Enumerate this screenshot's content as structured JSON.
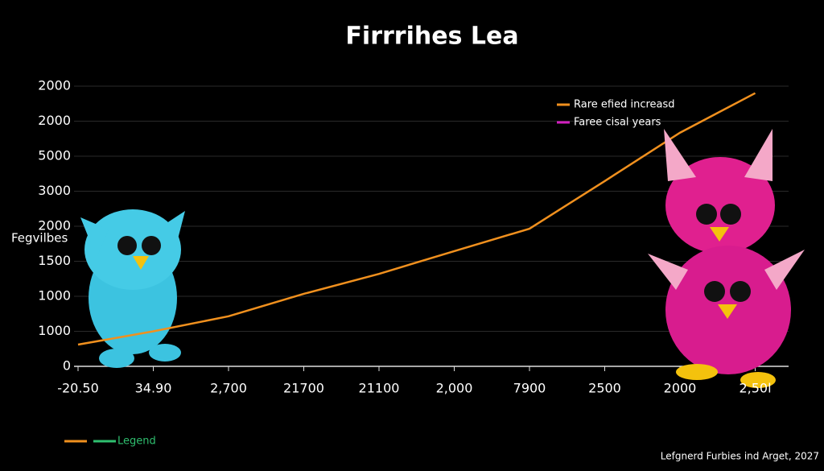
{
  "chart_data": {
    "type": "line",
    "title": "Firrrihes Lea",
    "y_label": "Fegvilbes",
    "categories": [
      "-20.50",
      "34.90",
      "2,700",
      "21700",
      "21100",
      "2,000",
      "7900",
      "2500",
      "2000",
      "2,50l"
    ],
    "series": [
      {
        "name": "Rare efied increasd",
        "color": "#f0901e",
        "values": [
          0.62,
          1.0,
          1.43,
          2.07,
          2.64,
          3.29,
          3.93,
          5.29,
          6.67,
          7.8
        ]
      },
      {
        "name": "Faree cisal years",
        "color": "#d21fbf",
        "values": [
          null,
          null,
          null,
          null,
          null,
          null,
          null,
          null,
          null,
          null
        ]
      }
    ],
    "ylim": [
      0,
      8
    ],
    "yticks": [
      {
        "value": 0,
        "label": "0"
      },
      {
        "value": 1,
        "label": "1000"
      },
      {
        "value": 2,
        "label": "1000"
      },
      {
        "value": 3,
        "label": "1500"
      },
      {
        "value": 4,
        "label": "2000"
      },
      {
        "value": 5,
        "label": "3000"
      },
      {
        "value": 6,
        "label": "5000"
      },
      {
        "value": 7,
        "label": "2000"
      },
      {
        "value": 8,
        "label": "2000"
      }
    ],
    "grid": true,
    "legend_position": "upper right",
    "bottom_legend": {
      "label": "Legend",
      "colors": [
        "#f0901e",
        "#2fbf6f"
      ]
    },
    "footer": "Lefgnerd Furbies ind Arget, 2027"
  }
}
